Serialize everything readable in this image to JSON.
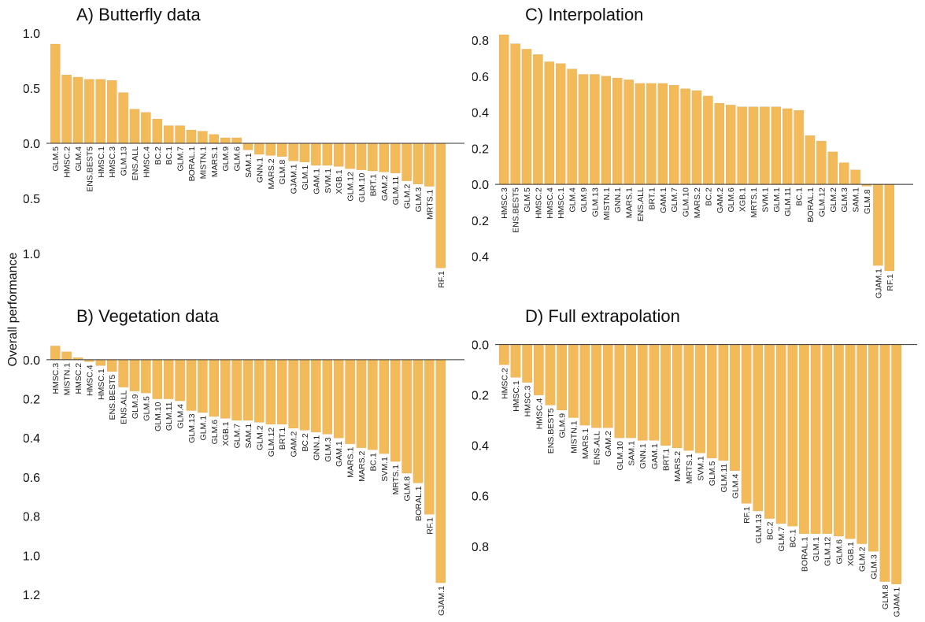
{
  "figure": {
    "ylabel": "Overall performance",
    "bar_color": "#F3BA5A",
    "axis_color": "#333333"
  },
  "chart_data": [
    {
      "type": "bar",
      "title": "A) Butterfly data",
      "ylim": [
        -1.2,
        1.05
      ],
      "yticks": [
        1.0,
        0.5,
        0.0,
        -0.5,
        -1.0
      ],
      "ytick_labels": [
        "1.0",
        "0.5",
        "0.0",
        "-0.5",
        "-1.0"
      ],
      "categories": [
        "GLM.5",
        "HMSC.2",
        "GLM.4",
        "ENS.BEST5",
        "HMSC.1",
        "HMSC.3",
        "GLM.13",
        "ENS.ALL",
        "HMSC.4",
        "BC.2",
        "BC.1",
        "GLM.7",
        "BORAL.1",
        "MISTN.1",
        "MARS.1",
        "GLM.9",
        "GLM.6",
        "SAM.1",
        "GNN.1",
        "MARS.2",
        "GLM.8",
        "GJAM.1",
        "GLM.1",
        "GAM.1",
        "SVM.1",
        "XGB.1",
        "GLM.12",
        "GLM.10",
        "BRT.1",
        "GAM.2",
        "GLM.11",
        "GLM.2",
        "GLM.3",
        "MRTS.1",
        "RF.1"
      ],
      "values": [
        0.9,
        0.62,
        0.6,
        0.58,
        0.58,
        0.57,
        0.46,
        0.31,
        0.28,
        0.22,
        0.16,
        0.16,
        0.12,
        0.11,
        0.08,
        0.05,
        0.05,
        -0.06,
        -0.1,
        -0.11,
        -0.12,
        -0.16,
        -0.17,
        -0.2,
        -0.2,
        -0.21,
        -0.23,
        -0.24,
        -0.25,
        -0.26,
        -0.27,
        -0.34,
        -0.37,
        -0.39,
        -1.13
      ]
    },
    {
      "type": "bar",
      "title": "B) Vegetation data",
      "ylim": [
        -1.2,
        0.1
      ],
      "yticks": [
        0.0,
        -0.2,
        -0.4,
        -0.6,
        -0.8,
        -1.0,
        -1.2
      ],
      "ytick_labels": [
        "0.0",
        "-0.2",
        "-0.4",
        "-0.6",
        "-0.8",
        "-1.0",
        "-1.2"
      ],
      "categories": [
        "HMSC.3",
        "MISTN.1",
        "HMSC.2",
        "HMSC.4",
        "HMSC.1",
        "ENS.BEST5",
        "ENS.ALL",
        "GLM.9",
        "GLM.5",
        "GLM.10",
        "GLM.11",
        "GLM.4",
        "GLM.13",
        "GLM.1",
        "GLM.6",
        "XGB.1",
        "GLM.7",
        "SAM.1",
        "GLM.2",
        "GLM.12",
        "BRT.1",
        "GAM.2",
        "BC.2",
        "GNN.1",
        "GLM.3",
        "GAM.1",
        "MARS.1",
        "MARS.2",
        "BC.1",
        "SVM.1",
        "MRTS.1",
        "GLM.8",
        "BORAL.1",
        "RF.1",
        "GJAM.1"
      ],
      "values": [
        0.07,
        0.04,
        0.01,
        -0.01,
        -0.03,
        -0.06,
        -0.14,
        -0.16,
        -0.17,
        -0.2,
        -0.2,
        -0.21,
        -0.26,
        -0.27,
        -0.29,
        -0.3,
        -0.31,
        -0.31,
        -0.32,
        -0.33,
        -0.33,
        -0.35,
        -0.36,
        -0.37,
        -0.38,
        -0.4,
        -0.43,
        -0.45,
        -0.46,
        -0.48,
        -0.52,
        -0.58,
        -0.63,
        -0.79,
        -1.14
      ]
    },
    {
      "type": "bar",
      "title": "C) Interpolation",
      "ylim": [
        -0.55,
        0.87
      ],
      "yticks": [
        0.8,
        0.6,
        0.4,
        0.2,
        0.0,
        -0.2,
        -0.4
      ],
      "ytick_labels": [
        "0.8",
        "0.6",
        "0.4",
        "0.2",
        "0.0",
        "-0.2",
        "-0.4"
      ],
      "categories": [
        "HMSC.3",
        "ENS.BEST5",
        "GLM.5",
        "HMSC.2",
        "HMSC.4",
        "HMSC.1",
        "GLM.4",
        "GLM.9",
        "GLM.13",
        "MISTN.1",
        "GNN.1",
        "MARS.1",
        "ENS.ALL",
        "BRT.1",
        "GAM.1",
        "GLM.7",
        "GLM.10",
        "MARS.2",
        "BC.2",
        "GAM.2",
        "GLM.6",
        "XGB.1",
        "MRTS.1",
        "SVM.1",
        "GLM.1",
        "GLM.11",
        "BC.1",
        "BORAL.1",
        "GLM.12",
        "GLM.2",
        "GLM.3",
        "SAM.1",
        "GLM.8",
        "GJAM.1",
        "RF.1"
      ],
      "values": [
        0.83,
        0.78,
        0.75,
        0.72,
        0.68,
        0.67,
        0.64,
        0.61,
        0.61,
        0.6,
        0.59,
        0.58,
        0.56,
        0.56,
        0.56,
        0.55,
        0.53,
        0.52,
        0.49,
        0.45,
        0.44,
        0.43,
        0.43,
        0.43,
        0.43,
        0.42,
        0.41,
        0.27,
        0.24,
        0.18,
        0.12,
        0.08,
        -0.01,
        -0.45,
        -0.48
      ]
    },
    {
      "type": "bar",
      "title": "D) Full extrapolation",
      "ylim": [
        -0.96,
        0.03
      ],
      "yticks": [
        0.0,
        -0.2,
        -0.4,
        -0.6,
        -0.8
      ],
      "ytick_labels": [
        "0.0",
        "-0.2",
        "-0.4",
        "-0.6",
        "-0.8"
      ],
      "categories": [
        "HMSC.2",
        "HMSC.1",
        "HMSC.3",
        "HMSC.4",
        "ENS.BEST5",
        "GLM.9",
        "MISTN.1",
        "MARS.1",
        "ENS.ALL",
        "GAM.2",
        "GLM.10",
        "SAM.1",
        "GNN.1",
        "GAM.1",
        "BRT.1",
        "MARS.2",
        "MRTS.1",
        "SVM.1",
        "GLM.5",
        "GLM.11",
        "GLM.4",
        "RF.1",
        "GLM.13",
        "BC.2",
        "GLM.7",
        "BC.1",
        "BORAL.1",
        "GLM.1",
        "GLM.12",
        "GLM.6",
        "XGB.1",
        "GLM.2",
        "GLM.3",
        "GLM.8",
        "GJAM.1"
      ],
      "values": [
        -0.08,
        -0.13,
        -0.15,
        -0.2,
        -0.24,
        -0.26,
        -0.29,
        -0.32,
        -0.33,
        -0.33,
        -0.37,
        -0.37,
        -0.38,
        -0.38,
        -0.4,
        -0.41,
        -0.42,
        -0.43,
        -0.45,
        -0.46,
        -0.5,
        -0.63,
        -0.66,
        -0.69,
        -0.71,
        -0.72,
        -0.75,
        -0.75,
        -0.75,
        -0.76,
        -0.77,
        -0.79,
        -0.82,
        -0.94,
        -0.95
      ]
    }
  ]
}
